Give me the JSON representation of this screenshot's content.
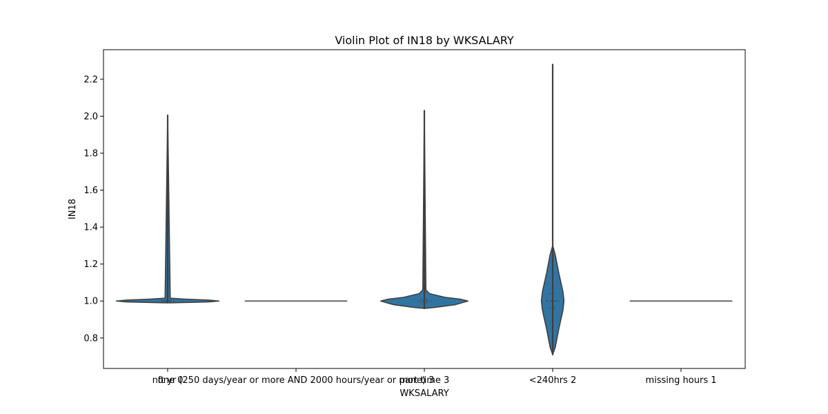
{
  "chart_data": {
    "type": "violin",
    "title": "Violin Plot of IN18 by WKSALARY",
    "xlabel": "WKSALARY",
    "ylabel": "IN18",
    "ylim": [
      0.635,
      2.36
    ],
    "yticks": [
      0.8,
      1.0,
      1.2,
      1.4,
      1.6,
      1.8,
      2.0,
      2.2
    ],
    "ytick_labels": [
      "0.8",
      "1.0",
      "1.2",
      "1.4",
      "1.6",
      "1.8",
      "2.0",
      "2.2"
    ],
    "grid": false,
    "legend": "none",
    "fill_color": "#3274a1",
    "line_color": "#3f3f3f",
    "categories": [
      "none 0",
      "ft yr (250 days/year or more AND 2000 hours/year or more) 3",
      "part time 3",
      "<240hrs 2",
      "missing hours 1"
    ],
    "series": [
      {
        "min": 0.995,
        "max": 2.005,
        "median": 1.0,
        "q1": 0.998,
        "q3": 1.002,
        "density": [
          [
            0.99,
            0.0
          ],
          [
            0.995,
            0.8
          ],
          [
            1.0,
            1.0
          ],
          [
            1.005,
            0.8
          ],
          [
            1.01,
            0.35
          ],
          [
            1.015,
            0.05
          ],
          [
            2.005,
            0.0
          ]
        ]
      },
      {
        "min": 1.0,
        "max": 1.0,
        "median": 1.0,
        "density": []
      },
      {
        "min": 0.96,
        "max": 2.03,
        "median": 1.0,
        "q1": 0.99,
        "q3": 1.01,
        "density": [
          [
            0.96,
            0.0
          ],
          [
            0.965,
            0.2
          ],
          [
            0.98,
            0.6
          ],
          [
            1.0,
            0.85
          ],
          [
            1.01,
            0.7
          ],
          [
            1.02,
            0.4
          ],
          [
            1.04,
            0.1
          ],
          [
            1.06,
            0.03
          ],
          [
            2.03,
            0.0
          ]
        ]
      },
      {
        "min": 0.71,
        "max": 2.28,
        "median": 1.0,
        "q1": 0.96,
        "q3": 1.04,
        "density": [
          [
            0.71,
            0.0
          ],
          [
            0.75,
            0.05
          ],
          [
            0.85,
            0.12
          ],
          [
            0.95,
            0.2
          ],
          [
            1.0,
            0.22
          ],
          [
            1.05,
            0.2
          ],
          [
            1.15,
            0.12
          ],
          [
            1.25,
            0.05
          ],
          [
            1.3,
            0.0
          ],
          [
            2.28,
            0.0
          ]
        ]
      },
      {
        "min": 1.0,
        "max": 1.0,
        "median": 1.0,
        "density": []
      }
    ]
  }
}
